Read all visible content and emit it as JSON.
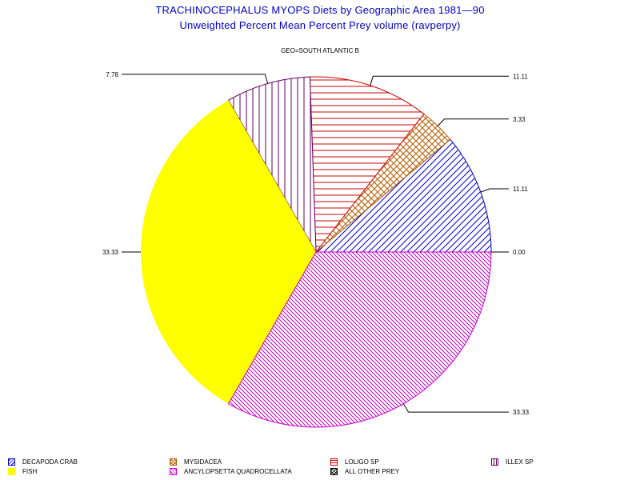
{
  "header": {
    "title_line1": "TRACHINOCEPHALUS MYOPS Diets by Geographic Area 1981—90",
    "title_line2": "Unweighted Percent Mean Percent Prey  volume (ravperpy)",
    "subtitle": "GEO=SOUTH ATLANTIC B"
  },
  "chart_data": {
    "type": "pie",
    "title": "TRACHINOCEPHALUS MYOPS Diets by Geographic Area 1981—90",
    "subtitle": "Unweighted Percent Mean Percent Prey  volume (ravperpy)",
    "group_label": "GEO=SOUTH ATLANTIC B",
    "start": "east",
    "direction": "counterclockwise",
    "slices": [
      {
        "name": "DECAPODA CRAB",
        "value": 11.11,
        "label": "11.11",
        "color": "#0000cc",
        "pattern": "diag-up",
        "label_side": "right"
      },
      {
        "name": "MYSIDACEA",
        "value": 3.33,
        "label": "3.33",
        "color": "#b85c00",
        "pattern": "cross",
        "label_side": "right"
      },
      {
        "name": "LOLIGO SP",
        "value": 11.11,
        "label": "11.11",
        "color": "#cc0000",
        "pattern": "horizontal",
        "label_side": "right"
      },
      {
        "name": "ILLEX SP",
        "value": 7.78,
        "label": "7.78",
        "color": "#660066",
        "pattern": "vertical",
        "label_side": "left"
      },
      {
        "name": "FISH",
        "value": 33.33,
        "label": "33.33",
        "color": "#ffff00",
        "pattern": "solid",
        "label_side": "left"
      },
      {
        "name": "ANCYLOPSETTA QUADROCELLATA",
        "value": 33.33,
        "label": "33.33",
        "color": "#cc00cc",
        "pattern": "diag-down",
        "label_side": "right"
      },
      {
        "name": "ALL OTHER PREY",
        "value": 0.0,
        "label": "0.00",
        "color": "#000000",
        "pattern": "cross",
        "label_side": "right"
      }
    ]
  },
  "legend": {
    "items": [
      {
        "label": "DECAPODA CRAB",
        "color": "#0000cc",
        "pattern": "diag-up"
      },
      {
        "label": "MYSIDACEA",
        "color": "#b85c00",
        "pattern": "cross"
      },
      {
        "label": "LOLIGO SP",
        "color": "#cc0000",
        "pattern": "horizontal"
      },
      {
        "label": "ILLEX SP",
        "color": "#660066",
        "pattern": "vertical"
      },
      {
        "label": "FISH",
        "color": "#ffff00",
        "pattern": "solid"
      },
      {
        "label": "ANCYLOPSETTA QUADROCELLATA",
        "color": "#cc00cc",
        "pattern": "diag-down"
      },
      {
        "label": "ALL OTHER PREY",
        "color": "#000000",
        "pattern": "cross"
      }
    ]
  }
}
